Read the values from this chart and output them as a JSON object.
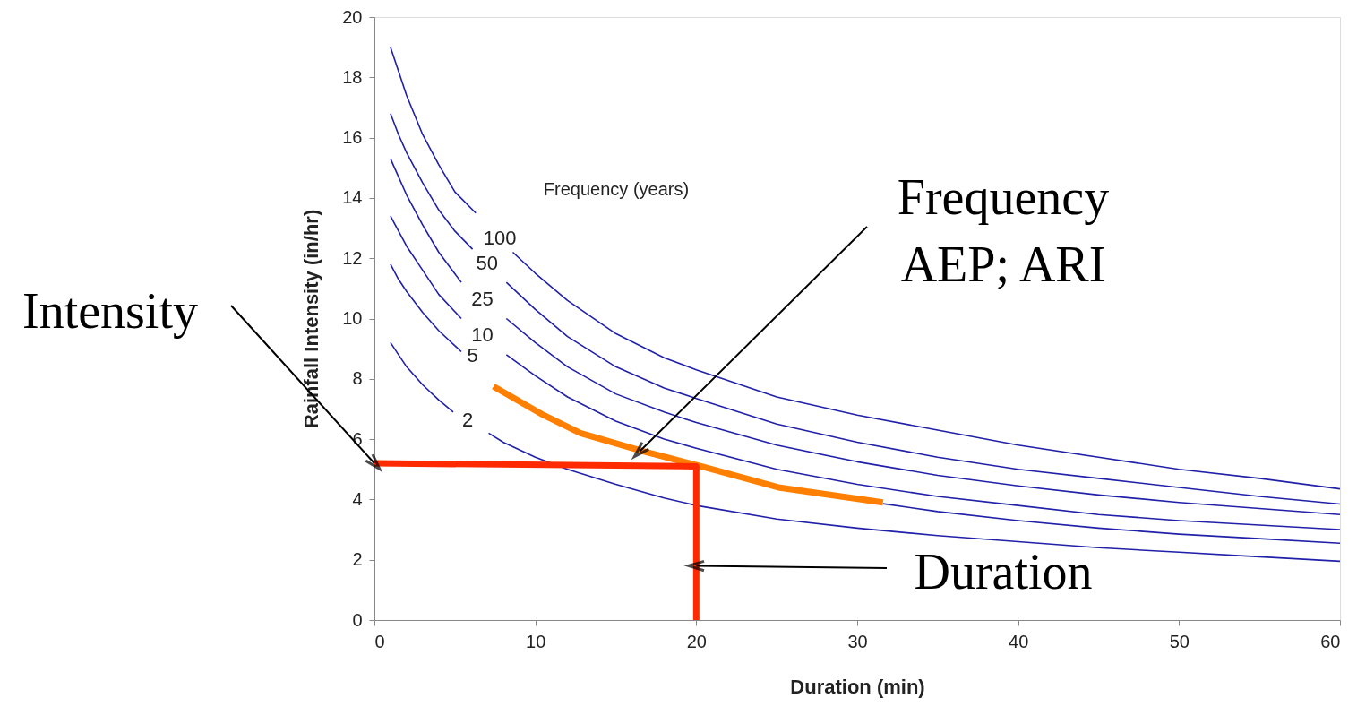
{
  "chart_data": {
    "type": "line",
    "xlabel": "Duration (min)",
    "ylabel": "Rainfall Intensity (in/hr)",
    "legend_title": "Frequency (years)",
    "xlim": [
      0,
      60
    ],
    "ylim": [
      0,
      20
    ],
    "xticks": [
      0,
      10,
      20,
      30,
      40,
      50,
      60
    ],
    "yticks": [
      0,
      2,
      4,
      6,
      8,
      10,
      12,
      14,
      16,
      18,
      20
    ],
    "grid": false,
    "line_style": "solid",
    "series": [
      {
        "name": "100",
        "color": "#2020a8",
        "x": [
          1,
          1.5,
          2,
          3,
          4,
          5,
          6.3,
          7.8,
          8.6,
          10,
          12,
          15,
          18,
          20,
          25,
          30,
          35,
          40,
          45,
          50,
          55,
          60
        ],
        "values": [
          19.0,
          18.2,
          17.4,
          16.1,
          15.1,
          14.2,
          13.5,
          null,
          12.2,
          11.5,
          10.6,
          9.5,
          8.7,
          8.3,
          7.4,
          6.8,
          6.3,
          5.8,
          5.4,
          5.0,
          4.7,
          4.35
        ]
      },
      {
        "name": "50",
        "color": "#2020a8",
        "x": [
          1,
          1.5,
          2,
          3,
          4,
          5,
          6.1,
          7.0,
          8.2,
          10,
          12,
          15,
          18,
          20,
          25,
          30,
          35,
          40,
          45,
          50,
          55,
          60
        ],
        "values": [
          16.8,
          16.1,
          15.5,
          14.5,
          13.6,
          12.9,
          12.3,
          null,
          11.2,
          10.3,
          9.4,
          8.4,
          7.7,
          7.35,
          6.5,
          5.9,
          5.4,
          5.0,
          4.7,
          4.4,
          4.1,
          3.85
        ]
      },
      {
        "name": "25",
        "color": "#2020a8",
        "x": [
          1,
          1.5,
          2,
          3,
          4,
          5.4,
          6.7,
          8.2,
          10,
          12,
          15,
          18,
          20,
          25,
          30,
          35,
          40,
          45,
          50,
          55,
          60
        ],
        "values": [
          15.3,
          14.7,
          14.1,
          13.1,
          12.2,
          11.2,
          null,
          10.0,
          9.2,
          8.4,
          7.5,
          6.9,
          6.55,
          5.8,
          5.25,
          4.8,
          4.45,
          4.15,
          3.9,
          3.7,
          3.5
        ]
      },
      {
        "name": "10",
        "color": "#2020a8",
        "x": [
          1,
          1.5,
          2,
          3,
          4,
          5.4,
          6.7,
          8.2,
          10,
          12,
          15,
          18,
          20,
          25,
          30,
          35,
          40,
          45,
          50,
          55,
          60
        ],
        "values": [
          13.4,
          12.9,
          12.4,
          11.6,
          10.8,
          10.0,
          null,
          8.8,
          8.1,
          7.4,
          6.6,
          6.0,
          5.7,
          5.0,
          4.5,
          4.1,
          3.8,
          3.5,
          3.3,
          3.15,
          3.0
        ]
      },
      {
        "name": "5",
        "color": "#2020a8",
        "x": [
          1,
          1.5,
          2,
          3,
          4,
          5.4,
          6.1,
          31.6,
          35,
          40,
          45,
          50,
          55,
          60
        ],
        "values": [
          11.8,
          11.3,
          10.9,
          10.2,
          9.6,
          8.9,
          null,
          3.86,
          3.6,
          3.3,
          3.05,
          2.85,
          2.7,
          2.55
        ]
      },
      {
        "name": "2",
        "color": "#2020a8",
        "x": [
          1,
          1.5,
          2,
          3,
          4,
          4.9,
          5.8,
          7.1,
          8,
          10,
          12,
          15,
          18,
          20,
          25,
          30,
          35,
          40,
          45,
          50,
          55,
          60
        ],
        "values": [
          9.2,
          8.8,
          8.4,
          7.8,
          7.3,
          6.9,
          null,
          6.2,
          5.9,
          5.4,
          5.0,
          4.5,
          4.05,
          3.8,
          3.35,
          3.05,
          2.8,
          2.6,
          2.4,
          2.25,
          2.1,
          1.95
        ]
      },
      {
        "type": "line",
        "color": "#ff7f00",
        "x": [
          7.4,
          10.5,
          12.8,
          16.7,
          20.3,
          25.1,
          31.6
        ],
        "values": [
          7.75,
          6.8,
          6.2,
          5.6,
          5.1,
          4.4,
          3.9
        ]
      },
      {
        "type": "line",
        "color": "#ff2a00",
        "x": [
          0,
          20,
          20
        ],
        "values": [
          5.2,
          5.1,
          0
        ]
      }
    ],
    "annotations": [
      {
        "text": "Intensity",
        "x": 0,
        "y": 5.2
      },
      {
        "text": "Frequency\nAEP; ARI",
        "x": 16.5,
        "y": 5.6
      },
      {
        "text": "Duration",
        "x": 20,
        "y": 1.8
      }
    ]
  }
}
